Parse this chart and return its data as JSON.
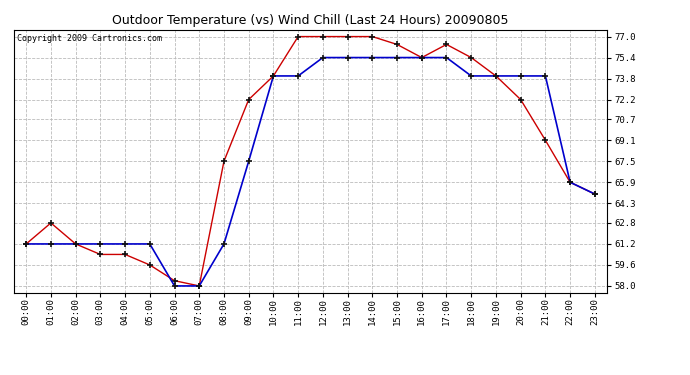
{
  "title": "Outdoor Temperature (vs) Wind Chill (Last 24 Hours) 20090805",
  "copyright": "Copyright 2009 Cartronics.com",
  "x_labels": [
    "00:00",
    "01:00",
    "02:00",
    "03:00",
    "04:00",
    "05:00",
    "06:00",
    "07:00",
    "08:00",
    "09:00",
    "10:00",
    "11:00",
    "12:00",
    "13:00",
    "14:00",
    "15:00",
    "16:00",
    "17:00",
    "18:00",
    "19:00",
    "20:00",
    "21:00",
    "22:00",
    "23:00"
  ],
  "temp_data": [
    61.2,
    62.8,
    61.2,
    60.4,
    60.4,
    59.6,
    58.4,
    58.0,
    67.5,
    72.2,
    74.0,
    77.0,
    77.0,
    77.0,
    77.0,
    76.4,
    75.4,
    76.4,
    75.4,
    74.0,
    72.2,
    69.1,
    65.9,
    65.0
  ],
  "windchill_data": [
    61.2,
    61.2,
    61.2,
    61.2,
    61.2,
    61.2,
    58.0,
    58.0,
    61.2,
    67.5,
    74.0,
    74.0,
    75.4,
    75.4,
    75.4,
    75.4,
    75.4,
    75.4,
    74.0,
    74.0,
    74.0,
    74.0,
    65.9,
    65.0
  ],
  "temp_color": "#cc0000",
  "windchill_color": "#0000cc",
  "bg_color": "#ffffff",
  "plot_bg_color": "#ffffff",
  "grid_color": "#bbbbbb",
  "yticks": [
    58.0,
    59.6,
    61.2,
    62.8,
    64.3,
    65.9,
    67.5,
    69.1,
    70.7,
    72.2,
    73.8,
    75.4,
    77.0
  ],
  "ylim": [
    57.5,
    77.5
  ],
  "title_fontsize": 9,
  "copyright_fontsize": 6,
  "tick_fontsize": 6.5
}
